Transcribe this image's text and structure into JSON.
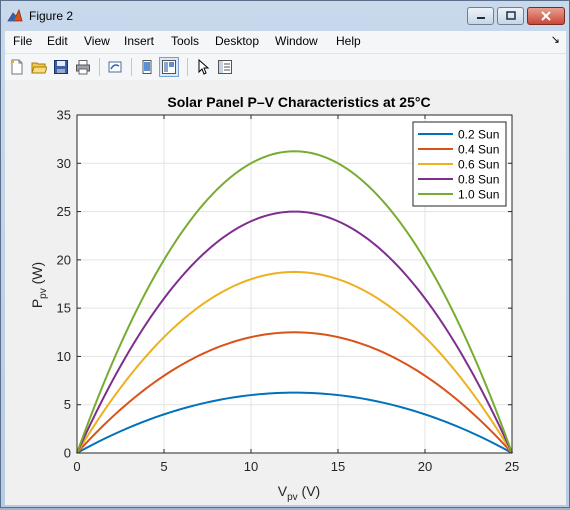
{
  "window": {
    "title": "Figure 2",
    "icon": "matlab-figure-icon"
  },
  "menu": [
    "File",
    "Edit",
    "View",
    "Insert",
    "Tools",
    "Desktop",
    "Window",
    "Help"
  ],
  "toolbar": {
    "icons": [
      "new-figure-icon",
      "open-file-icon",
      "save-icon",
      "print-icon",
      "link-plot-icon",
      "hide-plot-tools-icon",
      "show-plot-tools-icon",
      "edit-plot-icon",
      "property-inspector-icon"
    ]
  },
  "chart_data": {
    "type": "line",
    "title": "Solar Panel P–V Characteristics at 25°C",
    "xlabel": {
      "main": "V",
      "sub": "pv",
      "unit": " (V)"
    },
    "ylabel": {
      "main": "P",
      "sub": "pv",
      "unit": " (W)"
    },
    "xlim": [
      0,
      25
    ],
    "ylim": [
      0,
      35
    ],
    "xticks": [
      0,
      5,
      10,
      15,
      20,
      25
    ],
    "yticks": [
      0,
      5,
      10,
      15,
      20,
      25,
      30,
      35
    ],
    "grid": true,
    "legend_position": "top-right",
    "x": [
      0,
      2.5,
      5,
      7.5,
      10,
      12.5,
      15,
      17.5,
      20,
      22.5,
      25
    ],
    "series": [
      {
        "name": "0.2 Sun",
        "color": "#0072BD",
        "values": [
          0,
          2.25,
          4.0,
          5.25,
          6.0,
          6.25,
          6.0,
          5.25,
          4.0,
          2.25,
          0
        ]
      },
      {
        "name": "0.4 Sun",
        "color": "#D95319",
        "values": [
          0,
          4.5,
          8.0,
          10.5,
          12.0,
          12.5,
          12.0,
          10.5,
          8.0,
          4.5,
          0
        ]
      },
      {
        "name": "0.6 Sun",
        "color": "#EDB120",
        "values": [
          0,
          6.75,
          12.0,
          15.75,
          18.0,
          18.75,
          18.0,
          15.75,
          12.0,
          6.75,
          0
        ]
      },
      {
        "name": "0.8 Sun",
        "color": "#7E2F8E",
        "values": [
          0,
          9.0,
          16.0,
          21.0,
          24.0,
          25.0,
          24.0,
          21.0,
          16.0,
          9.0,
          0
        ]
      },
      {
        "name": "1.0 Sun",
        "color": "#77AC30",
        "values": [
          0,
          11.25,
          20.0,
          26.25,
          30.0,
          31.25,
          30.0,
          26.25,
          20.0,
          11.25,
          0
        ]
      }
    ]
  }
}
